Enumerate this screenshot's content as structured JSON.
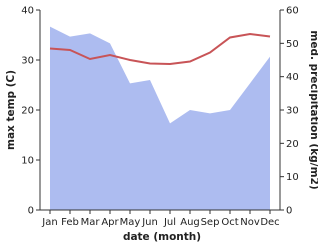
{
  "chart_data": {
    "type": "area-line",
    "x_label": "date (month)",
    "y_label": "max temp (C)",
    "y2_label": "med. precipitation (kg/m2)",
    "categories": [
      "Jan",
      "Feb",
      "Mar",
      "Apr",
      "May",
      "Jun",
      "Jul",
      "Aug",
      "Sep",
      "Oct",
      "Nov",
      "Dec"
    ],
    "series": [
      {
        "name": "max temp",
        "type": "line",
        "color": "#c85457",
        "values": [
          32.3,
          32,
          30.2,
          31,
          30,
          29.3,
          29.2,
          29.7,
          31.5,
          34.5,
          35.2,
          34.7
        ]
      },
      {
        "name": "med. precipitation",
        "type": "area",
        "axis": "y2",
        "color": "#adbcf0",
        "values": [
          55,
          52,
          53,
          50,
          38,
          39,
          26,
          30,
          29,
          30,
          38,
          46
        ]
      }
    ],
    "ylim": [
      0,
      40
    ],
    "yticks": [
      0,
      10,
      20,
      30,
      40
    ],
    "y2lim": [
      0,
      60
    ],
    "y2ticks": [
      0,
      10,
      20,
      30,
      40,
      50,
      60
    ]
  }
}
